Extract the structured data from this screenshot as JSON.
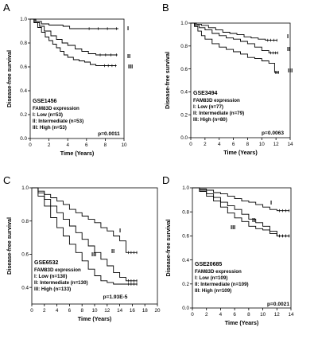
{
  "chart_data": [
    {
      "type": "line",
      "panel": "A",
      "dataset": "GSE1456",
      "xlabel": "Time (Years)",
      "ylabel": "Disease-free survival",
      "xlim": [
        0,
        10
      ],
      "ylim": [
        0,
        1.0
      ],
      "xticks": [
        0,
        2,
        4,
        6,
        8,
        10
      ],
      "yticks": [
        0.0,
        0.2,
        0.4,
        0.6,
        0.8,
        1.0
      ],
      "ytick_labels": [
        "0.0",
        "0.2",
        "0.4",
        "0.6",
        "0.8",
        "1.0"
      ],
      "legend_title": "FAM83D expression",
      "legend": [
        "I: Low (n=53)",
        "II: Intermediate (n=53)",
        "III: High (n=53)"
      ],
      "p_value": "p=0.0011",
      "series": [
        {
          "name": "I",
          "x": [
            0,
            0.6,
            1.2,
            2.0,
            3.5,
            4.2,
            5.5,
            9.4
          ],
          "y": [
            1.0,
            0.98,
            0.96,
            0.95,
            0.94,
            0.92,
            0.92,
            0.92
          ]
        },
        {
          "name": "II",
          "x": [
            0,
            0.5,
            1.0,
            1.5,
            2.2,
            2.8,
            3.4,
            4.0,
            4.8,
            5.5,
            6.2,
            7.0,
            9.3
          ],
          "y": [
            1.0,
            0.97,
            0.94,
            0.9,
            0.86,
            0.83,
            0.8,
            0.78,
            0.75,
            0.73,
            0.71,
            0.7,
            0.7
          ]
        },
        {
          "name": "III",
          "x": [
            0,
            0.4,
            0.8,
            1.2,
            1.6,
            2.0,
            2.4,
            2.8,
            3.2,
            3.6,
            4.0,
            4.6,
            5.2,
            5.8,
            6.4,
            7.0,
            7.6,
            9.2
          ],
          "y": [
            1.0,
            0.97,
            0.93,
            0.89,
            0.85,
            0.82,
            0.79,
            0.76,
            0.73,
            0.7,
            0.68,
            0.66,
            0.65,
            0.64,
            0.62,
            0.61,
            0.61,
            0.61
          ]
        }
      ],
      "curve_labels": [
        "I",
        "II",
        "III"
      ]
    },
    {
      "type": "line",
      "panel": "B",
      "dataset": "GSE3494",
      "xlabel": "Time (Years)",
      "ylabel": "Disease-free survival",
      "xlim": [
        0,
        14
      ],
      "ylim": [
        0,
        1.0
      ],
      "xticks": [
        0,
        2,
        4,
        6,
        8,
        10,
        12,
        14
      ],
      "yticks": [
        0.0,
        0.2,
        0.4,
        0.6,
        0.8,
        1.0
      ],
      "ytick_labels": [
        "0.0",
        "0.2",
        "0.4",
        "0.6",
        "0.8",
        "1.0"
      ],
      "legend_title": "FAM83D expression",
      "legend": [
        "I: Low (n=77)",
        "II: Intermediate (n=79)",
        "III: High (n=80)"
      ],
      "p_value": "p=0.0063",
      "series": [
        {
          "name": "I",
          "x": [
            0,
            0.8,
            1.5,
            2.5,
            3.5,
            4.5,
            5.5,
            6.5,
            7.5,
            8.5,
            9.5,
            10.5,
            12.2
          ],
          "y": [
            1.0,
            0.99,
            0.98,
            0.96,
            0.94,
            0.92,
            0.91,
            0.9,
            0.88,
            0.87,
            0.86,
            0.85,
            0.85
          ]
        },
        {
          "name": "II",
          "x": [
            0,
            0.6,
            1.2,
            2.0,
            3.0,
            4.0,
            5.0,
            6.0,
            7.0,
            8.0,
            9.0,
            10.0,
            11.0,
            12.3
          ],
          "y": [
            1.0,
            0.98,
            0.96,
            0.94,
            0.91,
            0.89,
            0.87,
            0.86,
            0.84,
            0.82,
            0.79,
            0.76,
            0.74,
            0.74
          ]
        },
        {
          "name": "III",
          "x": [
            0,
            0.5,
            1.0,
            1.5,
            2.0,
            3.0,
            4.0,
            5.0,
            6.0,
            7.0,
            8.0,
            9.0,
            10.0,
            11.0,
            11.8,
            12.4
          ],
          "y": [
            1.0,
            0.97,
            0.93,
            0.89,
            0.86,
            0.82,
            0.79,
            0.77,
            0.75,
            0.73,
            0.7,
            0.69,
            0.67,
            0.65,
            0.57,
            0.57
          ]
        }
      ],
      "curve_labels": [
        "I",
        "II",
        "III"
      ]
    },
    {
      "type": "line",
      "panel": "C",
      "dataset": "GSE6532",
      "xlabel": "Time (Years)",
      "ylabel": "Disease-free survival",
      "xlim": [
        0,
        20
      ],
      "ylim": [
        0.3,
        1.0
      ],
      "xticks": [
        0,
        2,
        4,
        6,
        8,
        10,
        12,
        14,
        16,
        18,
        20
      ],
      "yticks": [
        0.4,
        0.6,
        0.8,
        1.0
      ],
      "ytick_labels": [
        "0.4",
        "0.6",
        "0.8",
        "1.0"
      ],
      "legend_title": "FAM83D expression",
      "legend": [
        "I: Low (n=130)",
        "II: Intermediate (n=130)",
        "III: High (n=133)"
      ],
      "p_value": "p=1.93E-5",
      "series": [
        {
          "name": "I",
          "x": [
            0,
            1,
            2,
            3,
            4,
            5,
            6,
            7,
            8,
            9,
            10,
            11,
            12,
            13,
            14,
            15,
            16.8
          ],
          "y": [
            1.0,
            0.98,
            0.96,
            0.94,
            0.92,
            0.9,
            0.87,
            0.85,
            0.83,
            0.81,
            0.79,
            0.76,
            0.74,
            0.71,
            0.68,
            0.61,
            0.61
          ]
        },
        {
          "name": "II",
          "x": [
            0,
            1,
            2,
            3,
            4,
            5,
            6,
            7,
            8,
            9,
            10,
            11,
            12,
            13,
            14,
            15,
            16.8
          ],
          "y": [
            1.0,
            0.97,
            0.93,
            0.89,
            0.85,
            0.81,
            0.77,
            0.73,
            0.69,
            0.65,
            0.61,
            0.57,
            0.53,
            0.49,
            0.46,
            0.44,
            0.44
          ]
        },
        {
          "name": "III",
          "x": [
            0,
            1,
            2,
            3,
            4,
            5,
            6,
            7,
            8,
            9,
            10,
            11,
            12,
            13,
            14,
            15,
            16.8
          ],
          "y": [
            1.0,
            0.95,
            0.89,
            0.82,
            0.76,
            0.71,
            0.66,
            0.61,
            0.56,
            0.51,
            0.47,
            0.44,
            0.43,
            0.42,
            0.42,
            0.42,
            0.42
          ]
        }
      ],
      "curve_labels": [
        "I",
        "II",
        "III"
      ]
    },
    {
      "type": "line",
      "panel": "D",
      "dataset": "GSE20685",
      "xlabel": "Time (Years)",
      "ylabel": "Disease-free survival",
      "xlim": [
        0,
        14
      ],
      "ylim": [
        0,
        1.0
      ],
      "xticks": [
        0,
        2,
        4,
        6,
        8,
        10,
        12,
        14
      ],
      "yticks": [
        0.0,
        0.2,
        0.4,
        0.6,
        0.8,
        1.0
      ],
      "ytick_labels": [
        "0.0",
        "0.2",
        "0.4",
        "0.6",
        "0.8",
        "1.0"
      ],
      "legend_title": "FAM83D expression",
      "legend": [
        "I: Low (n=109)",
        "II: Intermediate (n=109)",
        "III: High (n=109)"
      ],
      "p_value": "p=0.0021",
      "series": [
        {
          "name": "I",
          "x": [
            0,
            1,
            2,
            3,
            4,
            5,
            6,
            7,
            8,
            9,
            10,
            11,
            12,
            13.8
          ],
          "y": [
            1.0,
            0.99,
            0.98,
            0.96,
            0.95,
            0.93,
            0.91,
            0.89,
            0.88,
            0.86,
            0.84,
            0.82,
            0.81,
            0.81
          ]
        },
        {
          "name": "II",
          "x": [
            0,
            1,
            2,
            3,
            4,
            5,
            6,
            7,
            8,
            9,
            10,
            11,
            12,
            13.8
          ],
          "y": [
            1.0,
            0.98,
            0.95,
            0.92,
            0.88,
            0.85,
            0.82,
            0.78,
            0.74,
            0.71,
            0.68,
            0.62,
            0.6,
            0.6
          ]
        },
        {
          "name": "III",
          "x": [
            0,
            1,
            2,
            3,
            4,
            5,
            6,
            7,
            8,
            9,
            10,
            11,
            12,
            13.8
          ],
          "y": [
            1.0,
            0.97,
            0.93,
            0.89,
            0.84,
            0.79,
            0.75,
            0.72,
            0.68,
            0.66,
            0.65,
            0.64,
            0.6,
            0.6
          ]
        }
      ],
      "curve_labels": [
        "I",
        "II",
        "III"
      ]
    }
  ]
}
